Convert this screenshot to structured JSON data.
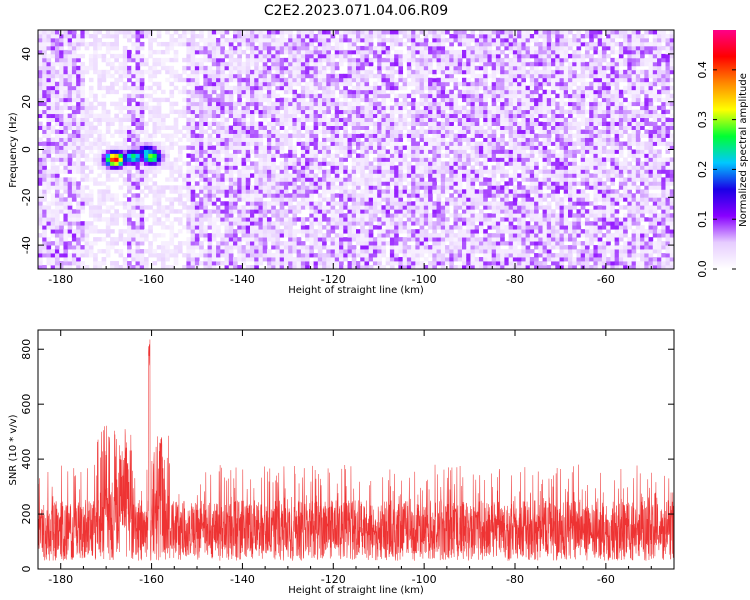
{
  "figure": {
    "title": "C2E2.2023.071.04.06.R09"
  },
  "chart_data": [
    {
      "type": "heatmap",
      "xlabel": "Height of straight line (km)",
      "ylabel": "Frequency (Hz)",
      "xlim": [
        -185,
        -45
      ],
      "ylim": [
        -50,
        50
      ],
      "xticks": [
        "-180",
        "-160",
        "-140",
        "-120",
        "-100",
        "-80",
        "-60"
      ],
      "yticks": [
        "-40",
        "-20",
        "0",
        "20",
        "40"
      ],
      "colorbar": {
        "label": "Normalized spectral amplitude",
        "range": [
          0,
          0.48
        ],
        "ticks": [
          "0.0",
          "0.1",
          "0.2",
          "0.3",
          "0.4"
        ],
        "colors": [
          "#ffffff",
          "#e6ccff",
          "#8800ff",
          "#1a00e6",
          "#00c8ff",
          "#00ff33",
          "#ffff00",
          "#ff8800",
          "#ff0000",
          "#ff0088"
        ]
      },
      "background_amplitude_range": [
        0.02,
        0.1
      ],
      "hotspots": [
        {
          "x": -168,
          "y": -4,
          "value": 0.44
        },
        {
          "x": -164,
          "y": -3,
          "value": 0.26
        },
        {
          "x": -161,
          "y": -1,
          "value": 0.22
        },
        {
          "x": -160,
          "y": -3,
          "value": 0.3
        }
      ],
      "low_amplitude_bands": [
        [
          -175,
          -165
        ],
        [
          -162,
          -152
        ]
      ]
    },
    {
      "type": "line",
      "xlabel": "Height of straight line (km)",
      "ylabel": "SNR (10 * v/v)",
      "xlim": [
        -185,
        -45
      ],
      "ylim": [
        0,
        870
      ],
      "xticks": [
        "-180",
        "-160",
        "-140",
        "-120",
        "-100",
        "-80",
        "-60"
      ],
      "yticks": [
        "0",
        "200",
        "400",
        "600",
        "800"
      ],
      "series": [
        {
          "color": "#ee3333",
          "baseline_range": [
            30,
            250
          ],
          "noise_max": 380,
          "features": [
            {
              "x_range": [
                -172,
                -164
              ],
              "peak": 530
            },
            {
              "x": -160.5,
              "peak": 870
            },
            {
              "x_range": [
                -160,
                -156
              ],
              "peak": 490
            }
          ]
        }
      ]
    }
  ]
}
